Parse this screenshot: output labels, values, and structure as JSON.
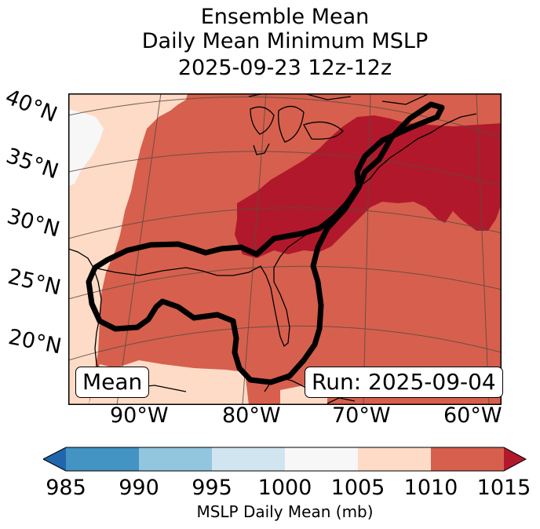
{
  "title": {
    "line1": "Ensemble Mean",
    "line2": "Daily Mean Minimum MSLP",
    "line3": "2025-09-23 12z-12z"
  },
  "map": {
    "lat_labels": [
      "40°N",
      "35°N",
      "30°N",
      "25°N",
      "20°N"
    ],
    "lon_labels": [
      "90°W",
      "80°W",
      "70°W",
      "60°W"
    ],
    "mean_box": "Mean",
    "run_box": "Run: 2025-09-04",
    "fill_colors": {
      "c1000_1005": "#f7f7f7",
      "c1005_1010": "#fddbc7",
      "c1010_1015": "#d6604d",
      "c1015_plus": "#b2182b",
      "contour": "#000000"
    }
  },
  "colorbar": {
    "ticks": [
      "985",
      "990",
      "995",
      "1000",
      "1005",
      "1010",
      "1015"
    ],
    "colors": [
      "#2166ac",
      "#4393c3",
      "#92c5de",
      "#d1e5f0",
      "#f7f7f7",
      "#fddbc7",
      "#d6604d",
      "#b2182b"
    ],
    "label": "MSLP Daily Mean (mb)"
  }
}
